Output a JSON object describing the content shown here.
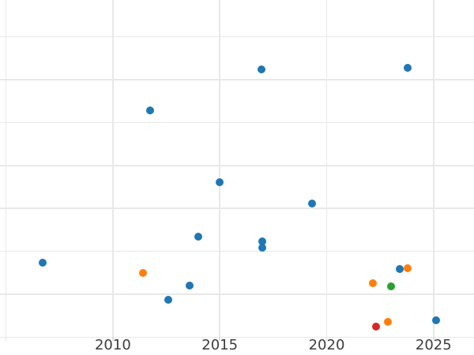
{
  "chart_data": {
    "type": "scatter",
    "title": "",
    "xlabel": "",
    "ylabel": "",
    "legend": "none",
    "grid": "on",
    "x_axis": {
      "tick_labels": [
        "2010",
        "2015",
        "2020",
        "2025"
      ],
      "tick_years": [
        2010,
        2015,
        2020,
        2025
      ],
      "gridline_years": [
        2005,
        2010,
        2015,
        2020,
        2025
      ],
      "range_years_visible": [
        2004.7,
        2026.9
      ]
    },
    "y_axis": {
      "tick_labels_visible": false,
      "gridline_units": [
        0,
        1,
        2,
        3,
        4,
        5,
        6,
        7
      ],
      "unit": "gridline-units (y tick labels cropped off left edge)"
    },
    "series": [
      {
        "name": "blue",
        "color": "#1f77b4",
        "points": [
          [
            2006.7,
            1.73
          ],
          [
            2011.75,
            5.28
          ],
          [
            2012.6,
            0.87
          ],
          [
            2013.6,
            1.2
          ],
          [
            2014.0,
            2.34
          ],
          [
            2015.0,
            3.61
          ],
          [
            2016.95,
            6.24
          ],
          [
            2017.0,
            2.23
          ],
          [
            2017.0,
            2.08
          ],
          [
            2019.3,
            3.11
          ],
          [
            2023.4,
            1.59
          ],
          [
            2023.8,
            6.28
          ],
          [
            2025.1,
            0.39
          ]
        ]
      },
      {
        "name": "orange",
        "color": "#ff7f0e",
        "points": [
          [
            2011.4,
            1.5
          ],
          [
            2022.15,
            1.26
          ],
          [
            2022.85,
            0.35
          ],
          [
            2023.8,
            1.61
          ]
        ]
      },
      {
        "name": "green",
        "color": "#2ca02c",
        "points": [
          [
            2023.0,
            1.18
          ]
        ]
      },
      {
        "name": "red",
        "color": "#d62728",
        "points": [
          [
            2022.3,
            0.24
          ]
        ]
      }
    ]
  },
  "style": {
    "background_color": "#ffffff",
    "grid_color": "#e8e8e8",
    "axis_line_color": "#e8e8e8",
    "tick_color": "#e0e0e0",
    "tick_label_color": "#3d3d3d"
  }
}
